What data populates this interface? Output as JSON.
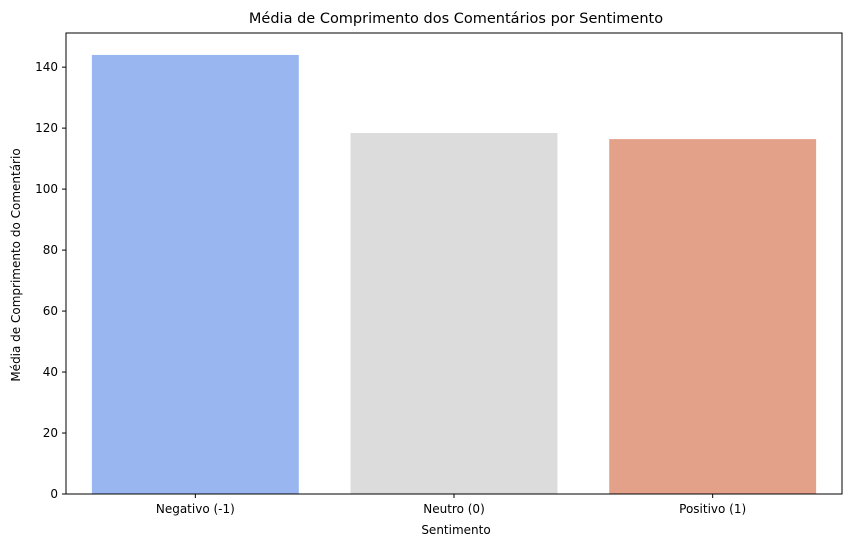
{
  "chart_data": {
    "type": "bar",
    "title": "Média de Comprimento dos Comentários por Sentimento",
    "xlabel": "Sentimento",
    "ylabel": "Média de Comprimento do Comentário",
    "categories": [
      "Negativo (-1)",
      "Neutro (0)",
      "Positivo (1)"
    ],
    "values": [
      144.0,
      118.4,
      116.4
    ],
    "colors": [
      "#9ab6f0",
      "#dcdcdc",
      "#e4a18a"
    ],
    "yticks": [
      0,
      20,
      40,
      60,
      80,
      100,
      120,
      140
    ],
    "ylim": [
      0,
      151.2
    ],
    "grid": false,
    "legend": "none"
  }
}
